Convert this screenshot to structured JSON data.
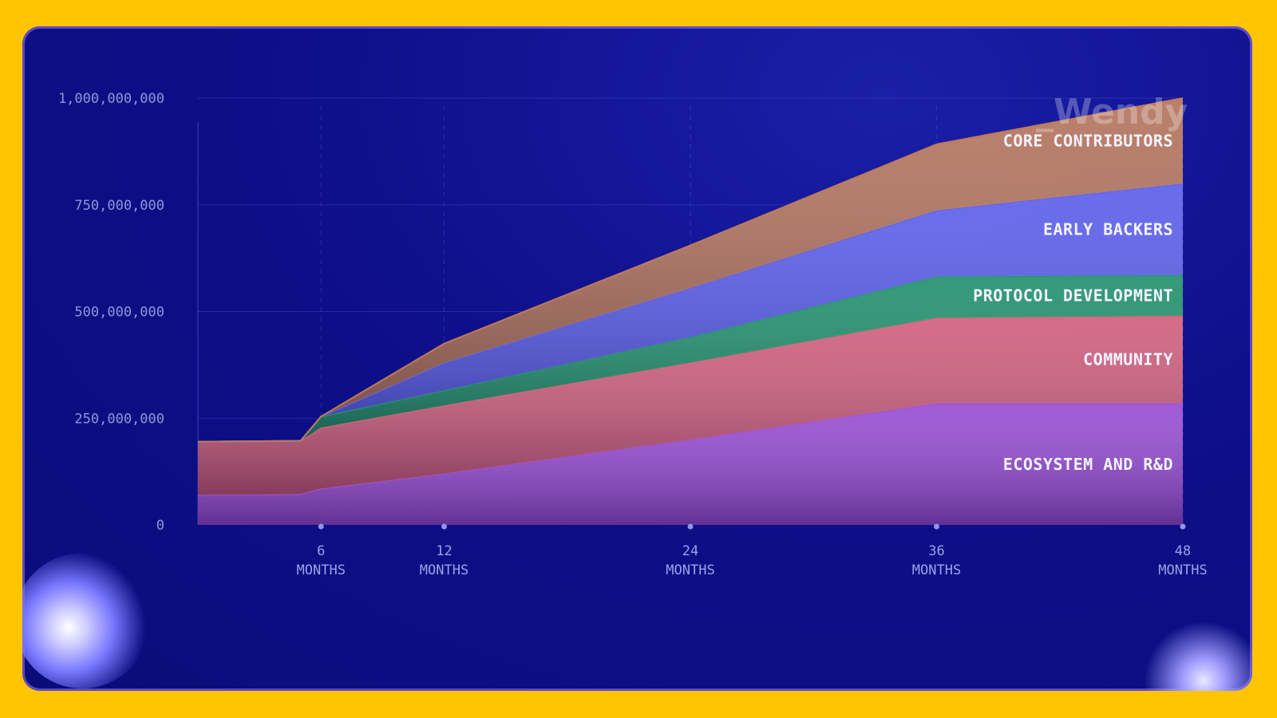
{
  "watermark": "_Wendy",
  "chart_data": {
    "type": "area",
    "stacked": true,
    "x": [
      0,
      5,
      6,
      12,
      24,
      36,
      48
    ],
    "x_ticks": [
      {
        "value": 6,
        "line1": "6",
        "line2": "MONTHS"
      },
      {
        "value": 12,
        "line1": "12",
        "line2": "MONTHS"
      },
      {
        "value": 24,
        "line1": "24",
        "line2": "MONTHS"
      },
      {
        "value": 36,
        "line1": "36",
        "line2": "MONTHS"
      },
      {
        "value": 48,
        "line1": "48",
        "line2": "MONTHS"
      }
    ],
    "y_ticks": [
      "0",
      "250,000,000",
      "500,000,000",
      "750,000,000",
      "1,000,000,000"
    ],
    "ylim": [
      0,
      1000000000
    ],
    "xlim": [
      0,
      48
    ],
    "grid": true,
    "series": [
      {
        "name": "ECOSYSTEM AND R&D",
        "color": "#a24fd8",
        "values": [
          70000000,
          72000000,
          85000000,
          120000000,
          200000000,
          285000000,
          285000000
        ]
      },
      {
        "name": "COMMUNITY",
        "color": "#e0637a",
        "values": [
          125000000,
          125000000,
          143000000,
          160000000,
          180000000,
          200000000,
          205000000
        ]
      },
      {
        "name": "PROTOCOL DEVELOPMENT",
        "color": "#1f9a66",
        "values": [
          0,
          0,
          26000000,
          35000000,
          60000000,
          97000000,
          95000000
        ]
      },
      {
        "name": "EARLY BACKERS",
        "color": "#5e63f2",
        "values": [
          0,
          0,
          0,
          65000000,
          115000000,
          155000000,
          215000000
        ]
      },
      {
        "name": "CORE CONTRIBUTORS",
        "color": "#c07a55",
        "values": [
          0,
          0,
          0,
          45000000,
          100000000,
          155000000,
          200000000
        ]
      }
    ]
  }
}
